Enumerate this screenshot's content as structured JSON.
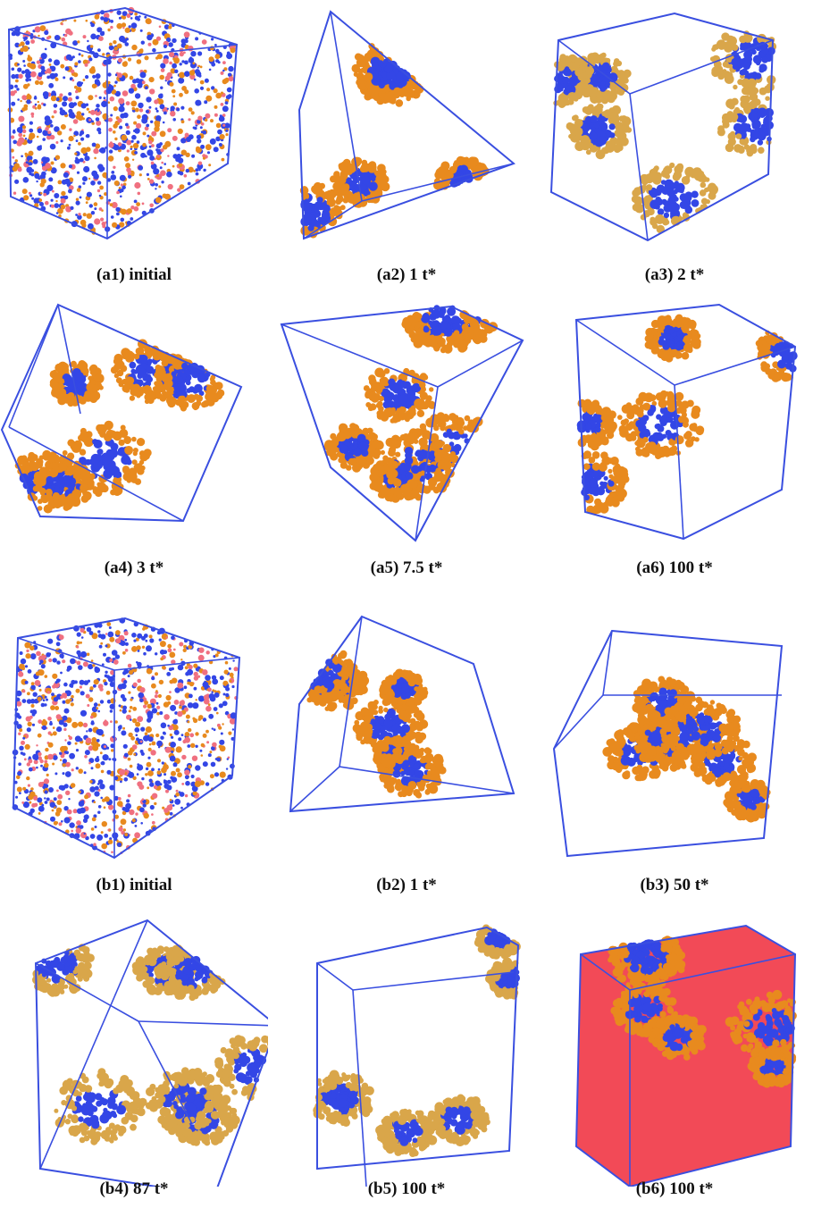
{
  "colors": {
    "edge": "#3a4fe0",
    "blue": "#3346e6",
    "orange": "#e88a1e",
    "gold": "#d9a64a",
    "red": "#f02a3a",
    "pink": "#f07080"
  },
  "panels": [
    {
      "id": "a1",
      "caption": "(a1) initial",
      "style": "mixed"
    },
    {
      "id": "a2",
      "caption": "(a2) 1 t*",
      "style": "orange"
    },
    {
      "id": "a3",
      "caption": "(a3) 2 t*",
      "style": "gold"
    },
    {
      "id": "a4",
      "caption": "(a4) 3 t*",
      "style": "orange"
    },
    {
      "id": "a5",
      "caption": "(a5) 7.5 t*",
      "style": "orange"
    },
    {
      "id": "a6",
      "caption": "(a6) 100 t*",
      "style": "orange"
    },
    {
      "id": "b1",
      "caption": "(b1) initial",
      "style": "mixed"
    },
    {
      "id": "b2",
      "caption": "(b2) 1 t*",
      "style": "orange"
    },
    {
      "id": "b3",
      "caption": "(b3) 50 t*",
      "style": "orange"
    },
    {
      "id": "b4",
      "caption": "(b4) 87 t*",
      "style": "gold"
    },
    {
      "id": "b5",
      "caption": "(b5) 100 t*",
      "style": "gold"
    },
    {
      "id": "b6",
      "caption": "(b6) 100 t*",
      "style": "red"
    }
  ]
}
